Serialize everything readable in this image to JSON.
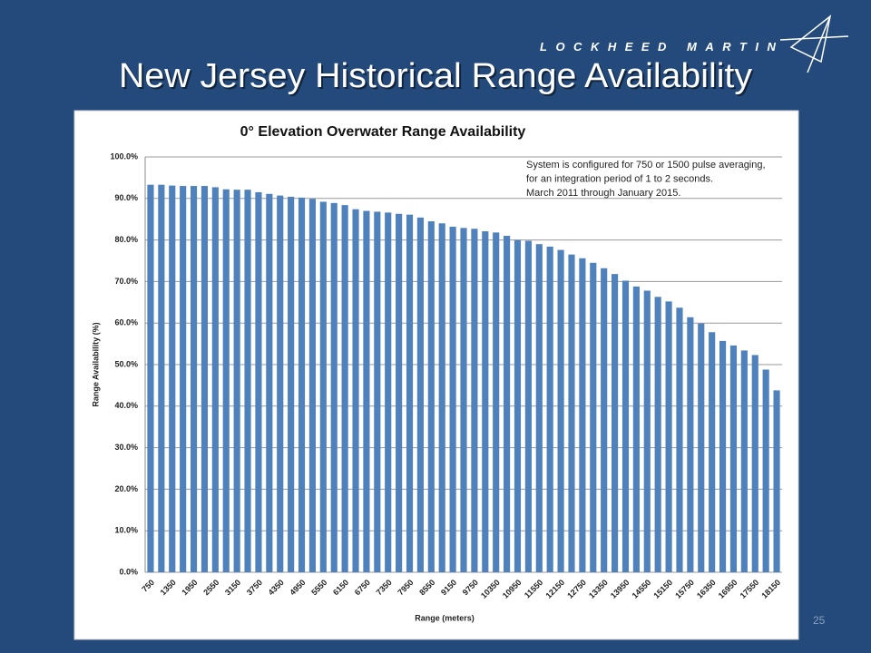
{
  "logo": "LOCKHEED MARTIN",
  "slide_title": "New Jersey Historical Range Availability",
  "page_number": "25",
  "chart_data": {
    "type": "bar",
    "title": "0° Elevation Overwater Range Availability",
    "annotation": [
      "System is configured for 750 or 1500 pulse averaging,",
      "for an integration period of 1 to 2 seconds.",
      "March 2011 through January 2015."
    ],
    "x_label": "Range (meters)",
    "y_label": "Range Availability (%)",
    "color": "#4f81bd",
    "grid": true,
    "categories": [
      "750",
      null,
      "1350",
      null,
      "1950",
      null,
      "2550",
      null,
      "3150",
      null,
      "3750",
      null,
      "4350",
      null,
      "4950",
      null,
      "5550",
      null,
      "6150",
      null,
      "6750",
      null,
      "7350",
      null,
      "7950",
      null,
      "8550",
      null,
      "9150",
      null,
      "9750",
      null,
      "10350",
      null,
      "10950",
      null,
      "11550",
      null,
      "12150",
      null,
      "12750",
      null,
      "13350",
      null,
      "13950",
      null,
      "14550",
      null,
      "15150",
      null,
      "15750",
      null,
      "16350",
      null,
      "16950",
      null,
      "17550",
      null,
      "18150"
    ],
    "values": [
      93.3,
      93.3,
      93.1,
      93.0,
      93.0,
      93.0,
      92.7,
      92.2,
      92.1,
      92.1,
      91.5,
      91.1,
      90.7,
      90.4,
      90.2,
      89.9,
      89.2,
      88.9,
      88.4,
      87.4,
      87.0,
      86.8,
      86.6,
      86.3,
      86.1,
      85.4,
      84.5,
      84.0,
      83.2,
      82.9,
      82.7,
      82.1,
      81.8,
      81.0,
      80.0,
      79.8,
      79.0,
      78.4,
      77.6,
      76.5,
      75.6,
      74.5,
      73.2,
      71.8,
      70.2,
      68.8,
      67.8,
      66.3,
      65.2,
      63.7,
      61.4,
      59.9,
      57.8,
      55.7,
      54.6,
      53.4,
      52.3,
      48.8,
      43.8
    ],
    "ylim": [
      0,
      100
    ],
    "yticks": [
      {
        "value": 0,
        "label": "0.0%"
      },
      {
        "value": 10,
        "label": "10.0%"
      },
      {
        "value": 20,
        "label": "20.0%"
      },
      {
        "value": 30,
        "label": "30.0%"
      },
      {
        "value": 40,
        "label": "40.0%"
      },
      {
        "value": 50,
        "label": "50.0%"
      },
      {
        "value": 60,
        "label": "60.0%"
      },
      {
        "value": 70,
        "label": "70.0%"
      },
      {
        "value": 80,
        "label": "80.0%"
      },
      {
        "value": 90,
        "label": "90.0%"
      },
      {
        "value": 100,
        "label": "100.0%"
      }
    ]
  }
}
